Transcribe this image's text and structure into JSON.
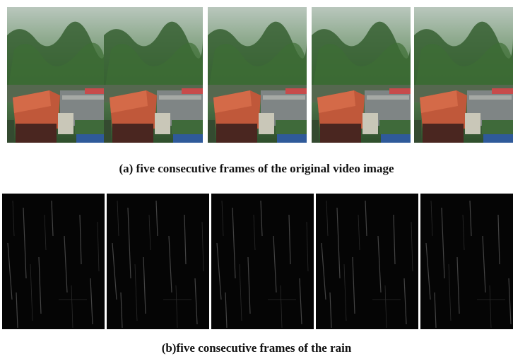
{
  "figure": {
    "panels": [
      {
        "caption": "(a) five consecutive frames of the original video image"
      },
      {
        "caption": "(b)five consecutive frames of the rain"
      }
    ]
  }
}
